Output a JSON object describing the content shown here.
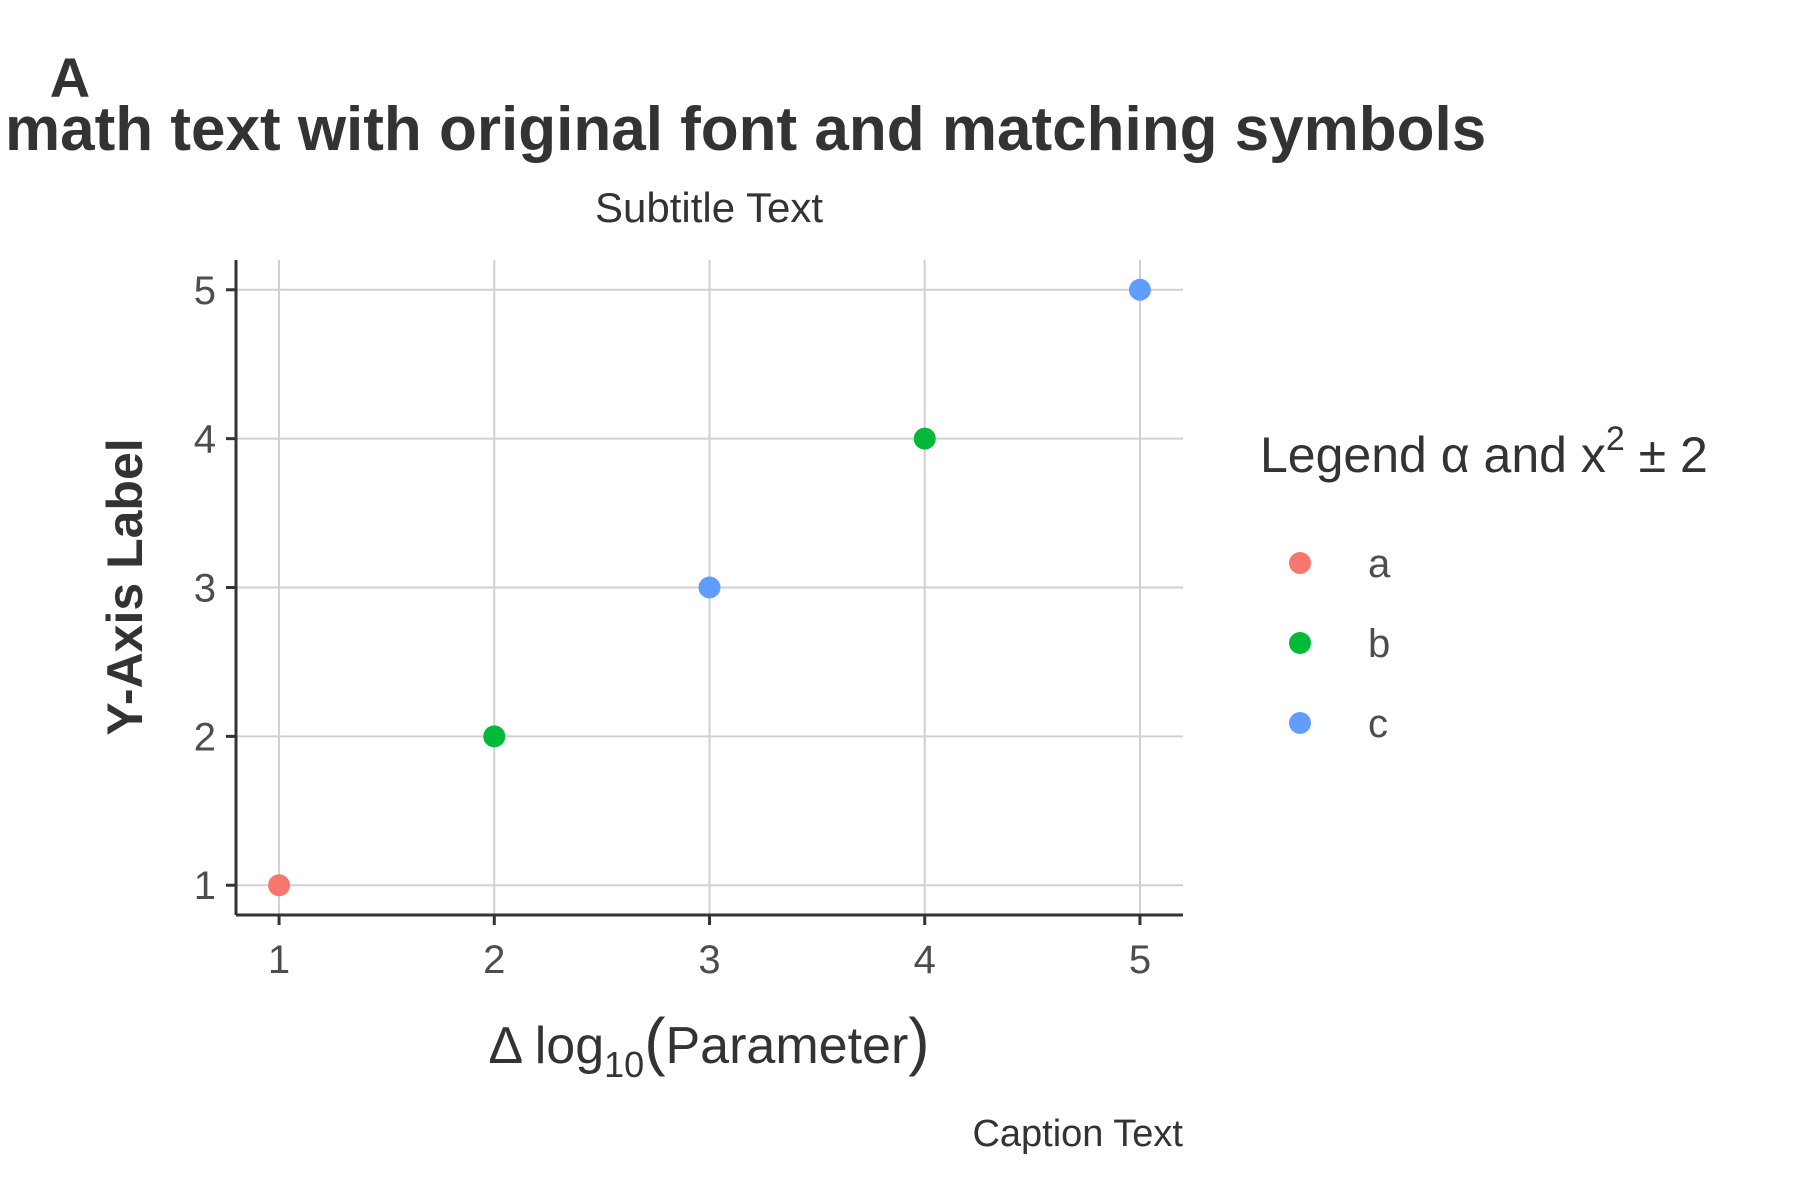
{
  "chart_data": {
    "type": "scatter",
    "tag": "A",
    "title": "math text with original font and matching symbols",
    "subtitle": "Subtitle Text",
    "caption": "Caption Text",
    "ylabel": "Y-Axis Label",
    "xlabel": {
      "prefix": "Δ log",
      "subscript": "10",
      "open": "(",
      "inner": "Parameter",
      "close": ")"
    },
    "xlim": [
      0.8,
      5.2
    ],
    "ylim": [
      0.8,
      5.2
    ],
    "x_ticks": [
      1,
      2,
      3,
      4,
      5
    ],
    "y_ticks": [
      1,
      2,
      3,
      4,
      5
    ],
    "grid": true,
    "legend": {
      "position": "right",
      "title": {
        "prefix": "Legend α and x",
        "superscript": "2",
        "suffix": " ± 2"
      },
      "entries": [
        {
          "label": "a",
          "color": "#F8766D"
        },
        {
          "label": "b",
          "color": "#00BA38"
        },
        {
          "label": "c",
          "color": "#619CFF"
        }
      ]
    },
    "points": [
      {
        "x": 1,
        "y": 1,
        "group": "a"
      },
      {
        "x": 2,
        "y": 2,
        "group": "b"
      },
      {
        "x": 3,
        "y": 3,
        "group": "c"
      },
      {
        "x": 4,
        "y": 4,
        "group": "b"
      },
      {
        "x": 5,
        "y": 5,
        "group": "c"
      }
    ]
  }
}
